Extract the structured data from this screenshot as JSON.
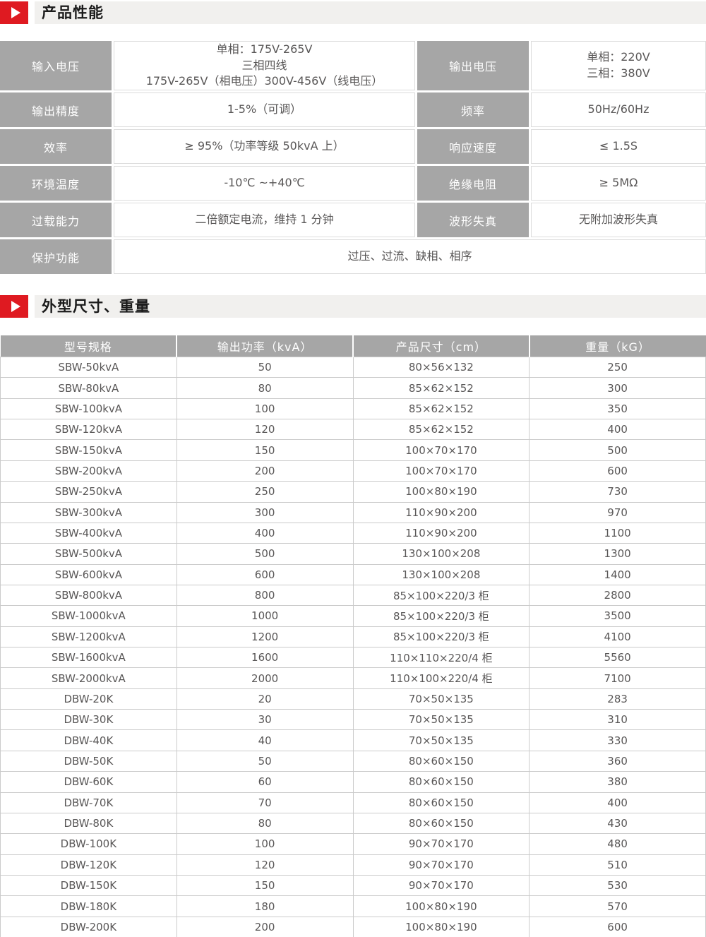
{
  "page": {
    "section1_title": "产品性能",
    "section2_title": "外型尺寸、重量"
  },
  "colors": {
    "accent_red": "#df1a21",
    "cell_gray": "#a6a6a6",
    "title_bar_bg": "#f1f0ee",
    "text_dark": "#595757"
  },
  "performance_table": {
    "rows": [
      {
        "label1": "输入电压",
        "value1_lines": [
          "单相：175V-265V",
          "三相四线",
          "175V-265V（相电压）300V-456V（线电压）"
        ],
        "label2": "输出电压",
        "value2_lines": [
          "单相：220V",
          "三相：380V"
        ]
      },
      {
        "label1": "输出精度",
        "value1": "1-5%（可调）",
        "label2": "频率",
        "value2": "50Hz/60Hz"
      },
      {
        "label1": "效率",
        "value1": "≥ 95%（功率等级 50kvA 上）",
        "label2": "响应速度",
        "value2": "≤ 1.5S"
      },
      {
        "label1": "环境温度",
        "value1": "-10℃ ~+40℃",
        "label2": "绝缘电阻",
        "value2": "≥ 5MΩ"
      },
      {
        "label1": "过载能力",
        "value1": "二倍额定电流，维持 1 分钟",
        "label2": "波形失真",
        "value2": "无附加波形失真"
      },
      {
        "label1": "保护功能",
        "value_full": "过压、过流、缺相、相序"
      }
    ]
  },
  "spec_table": {
    "headers": [
      "型号规格",
      "输出功率（kvA）",
      "产品尺寸（cm）",
      "重量（kG）"
    ],
    "rows": [
      [
        "SBW-50kvA",
        "50",
        "80×56×132",
        "250"
      ],
      [
        "SBW-80kvA",
        "80",
        "85×62×152",
        "300"
      ],
      [
        "SBW-100kvA",
        "100",
        "85×62×152",
        "350"
      ],
      [
        "SBW-120kvA",
        "120",
        "85×62×152",
        "400"
      ],
      [
        "SBW-150kvA",
        "150",
        "100×70×170",
        "500"
      ],
      [
        "SBW-200kvA",
        "200",
        "100×70×170",
        "600"
      ],
      [
        "SBW-250kvA",
        "250",
        "100×80×190",
        "730"
      ],
      [
        "SBW-300kvA",
        "300",
        "110×90×200",
        "970"
      ],
      [
        "SBW-400kvA",
        "400",
        "110×90×200",
        "1100"
      ],
      [
        "SBW-500kvA",
        "500",
        "130×100×208",
        "1300"
      ],
      [
        "SBW-600kvA",
        "600",
        "130×100×208",
        "1400"
      ],
      [
        "SBW-800kvA",
        "800",
        "85×100×220/3 柜",
        "2800"
      ],
      [
        "SBW-1000kvA",
        "1000",
        "85×100×220/3 柜",
        "3500"
      ],
      [
        "SBW-1200kvA",
        "1200",
        "85×100×220/3 柜",
        "4100"
      ],
      [
        "SBW-1600kvA",
        "1600",
        "110×110×220/4 柜",
        "5560"
      ],
      [
        "SBW-2000kvA",
        "2000",
        "110×100×220/4 柜",
        "7100"
      ],
      [
        "DBW-20K",
        "20",
        "70×50×135",
        "283"
      ],
      [
        "DBW-30K",
        "30",
        "70×50×135",
        "310"
      ],
      [
        "DBW-40K",
        "40",
        "70×50×135",
        "330"
      ],
      [
        "DBW-50K",
        "50",
        "80×60×150",
        "360"
      ],
      [
        "DBW-60K",
        "60",
        "80×60×150",
        "380"
      ],
      [
        "DBW-70K",
        "70",
        "80×60×150",
        "400"
      ],
      [
        "DBW-80K",
        "80",
        "80×60×150",
        "430"
      ],
      [
        "DBW-100K",
        "100",
        "90×70×170",
        "480"
      ],
      [
        "DBW-120K",
        "120",
        "90×70×170",
        "510"
      ],
      [
        "DBW-150K",
        "150",
        "90×70×170",
        "530"
      ],
      [
        "DBW-180K",
        "180",
        "100×80×190",
        "570"
      ],
      [
        "DBW-200K",
        "200",
        "100×80×190",
        "600"
      ]
    ]
  }
}
